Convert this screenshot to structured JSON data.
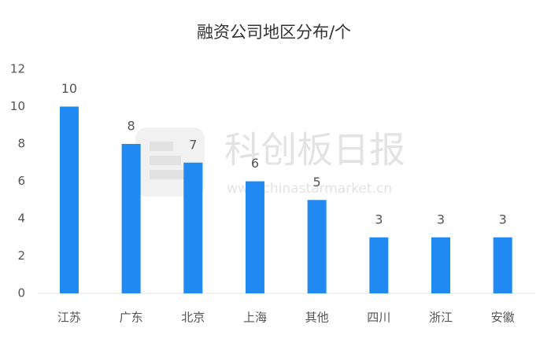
{
  "chart_data": {
    "type": "bar",
    "title": "融资公司地区分布/个",
    "categories": [
      "江苏",
      "广东",
      "北京",
      "上海",
      "其他",
      "四川",
      "浙江",
      "安徽"
    ],
    "values": [
      10,
      8,
      7,
      6,
      5,
      3,
      3,
      3
    ],
    "color": "#2089f2",
    "ylim": [
      0,
      12
    ],
    "yticks": [
      0,
      2,
      4,
      6,
      8,
      10,
      12
    ],
    "grid": false,
    "watermark": {
      "name": "科创板日报",
      "url": "www.chinastarmarket.cn"
    }
  }
}
